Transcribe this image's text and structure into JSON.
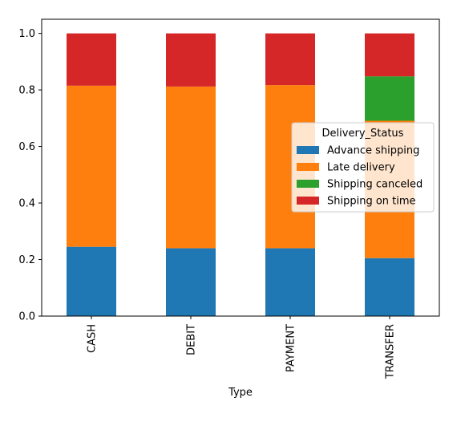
{
  "chart_data": {
    "type": "bar",
    "stacked": true,
    "title": "",
    "xlabel": "Type",
    "ylabel": "",
    "ylim": [
      0,
      1.0
    ],
    "yticks": [
      0.0,
      0.2,
      0.4,
      0.6,
      0.8,
      1.0
    ],
    "ytick_labels": [
      "0.0",
      "0.2",
      "0.4",
      "0.6",
      "0.8",
      "1.0"
    ],
    "categories": [
      "CASH",
      "DEBIT",
      "PAYMENT",
      "TRANSFER"
    ],
    "series": [
      {
        "name": "Advance shipping",
        "color": "#1f77b4",
        "values": [
          0.245,
          0.24,
          0.24,
          0.205
        ]
      },
      {
        "name": "Late delivery",
        "color": "#ff7f0e",
        "values": [
          0.57,
          0.572,
          0.577,
          0.486
        ]
      },
      {
        "name": "Shipping canceled",
        "color": "#2ca02c",
        "values": [
          0.0,
          0.0,
          0.0,
          0.157
        ]
      },
      {
        "name": "Shipping on time",
        "color": "#d62728",
        "values": [
          0.185,
          0.188,
          0.183,
          0.152
        ]
      }
    ],
    "legend": {
      "title": "Delivery_Status",
      "placement": "center-right"
    },
    "grid": false
  }
}
